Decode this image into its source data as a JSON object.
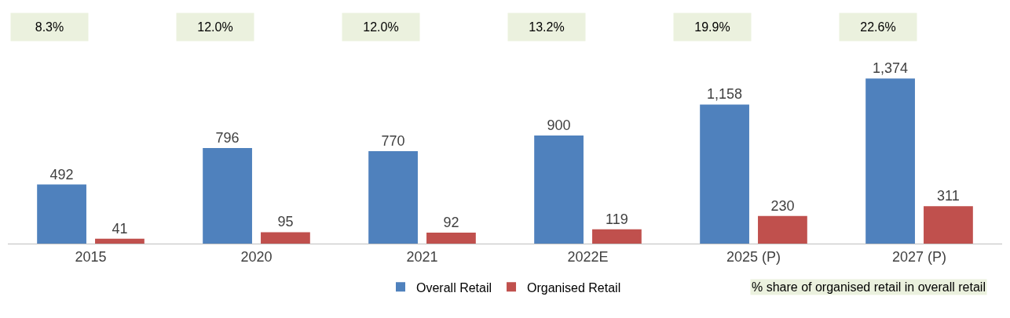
{
  "chart_data": {
    "type": "bar",
    "categories": [
      "2015",
      "2020",
      "2021",
      "2022E",
      "2025 (P)",
      "2027 (P)"
    ],
    "series": [
      {
        "name": "Overall Retail",
        "color": "#4f81bd",
        "values": [
          492,
          796,
          770,
          900,
          1158,
          1374
        ],
        "value_labels": [
          "492",
          "796",
          "770",
          "900",
          "1,158",
          "1,374"
        ]
      },
      {
        "name": "Organised Retail",
        "color": "#c0504d",
        "values": [
          41,
          95,
          92,
          119,
          230,
          311
        ],
        "value_labels": [
          "41",
          "95",
          "92",
          "119",
          "230",
          "311"
        ]
      }
    ],
    "annotations": [
      "8.3%",
      "12.0%",
      "12.0%",
      "13.2%",
      "19.9%",
      "22.6%",
      "% share of organised retail in overall retail"
    ],
    "legend": "bottom",
    "grid": false
  }
}
